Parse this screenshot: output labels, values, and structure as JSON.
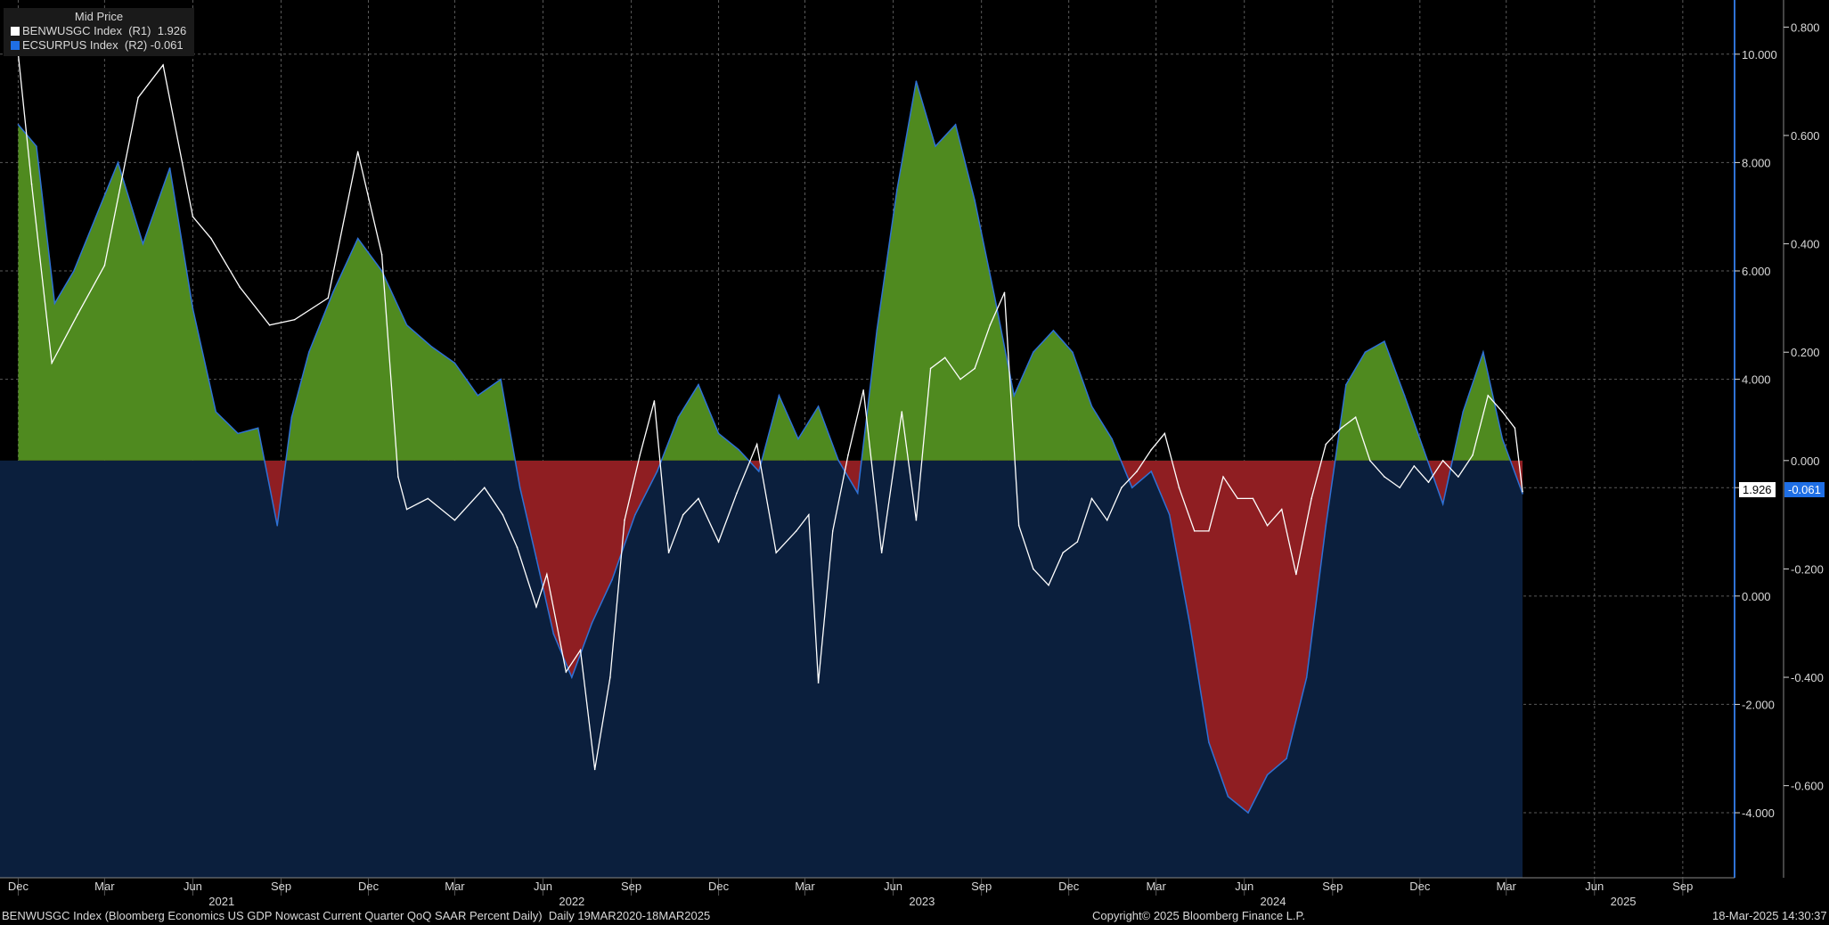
{
  "legend": {
    "title": "Mid Price",
    "series": [
      {
        "name": "BENWUSGC Index  (R1)",
        "last": "1.926",
        "color": "#ffffff"
      },
      {
        "name": "ECSURPUS Index  (R2)",
        "last": "-0.061",
        "color": "#1f6fe5"
      }
    ]
  },
  "footer": {
    "description": "BENWUSGC Index (Bloomberg Economics US GDP Nowcast Current Quarter QoQ SAAR Percent Daily)  Daily 19MAR2020-18MAR2025",
    "copyright": "Copyright© 2025 Bloomberg Finance L.P.",
    "timestamp": "18-Mar-2025 14:30:37"
  },
  "colors": {
    "background": "#000000",
    "grid": "#5a5a5a",
    "negative_fill_r2": "#0b1f3d",
    "positive_area": "#4f8a1f",
    "negative_area": "#8f1e22",
    "r2_line": "#2f72d6",
    "r1_line": "#ffffff"
  },
  "chart_data": {
    "type": "area",
    "x_axis": {
      "months": [
        "Dec",
        "Mar",
        "Jun",
        "Sep",
        "Dec",
        "Mar",
        "Jun",
        "Sep",
        "Dec",
        "Mar",
        "Jun",
        "Sep",
        "Dec",
        "Mar",
        "Jun",
        "Sep",
        "Dec",
        "Mar",
        "Jun",
        "Sep"
      ],
      "years": [
        "2021",
        "2022",
        "2023",
        "2024",
        "2025"
      ],
      "range": [
        "2020-12",
        "2025-09"
      ]
    },
    "r1_axis": {
      "ticks": [
        "10.000",
        "8.000",
        "6.000",
        "4.000",
        "2.000",
        "0.000",
        "-2.000",
        "-4.000"
      ],
      "ylim": [
        -5.2,
        11
      ]
    },
    "r2_axis": {
      "ticks": [
        "0.800",
        "0.600",
        "0.400",
        "0.200",
        "0.000",
        "-0.200",
        "-0.400",
        "-0.600"
      ],
      "ylim": [
        -0.77,
        0.85
      ]
    },
    "last_value_tags": {
      "r1": "1.926",
      "r2": "-0.061"
    },
    "series": [
      {
        "name": "ECSURPUS Index",
        "axis": "R2",
        "x": [
          "2020-12-01",
          "2020-12-20",
          "2021-01-08",
          "2021-01-28",
          "2021-02-20",
          "2021-03-15",
          "2021-04-10",
          "2021-05-08",
          "2021-06-01",
          "2021-06-25",
          "2021-07-18",
          "2021-08-08",
          "2021-08-28",
          "2021-09-12",
          "2021-09-30",
          "2021-10-25",
          "2021-11-20",
          "2021-12-15",
          "2022-01-10",
          "2022-02-05",
          "2022-03-01",
          "2022-03-25",
          "2022-04-18",
          "2022-05-08",
          "2022-05-25",
          "2022-06-12",
          "2022-07-01",
          "2022-07-22",
          "2022-08-12",
          "2022-09-05",
          "2022-09-28",
          "2022-10-20",
          "2022-11-10",
          "2022-12-01",
          "2022-12-22",
          "2023-01-12",
          "2023-02-02",
          "2023-02-22",
          "2023-03-15",
          "2023-04-05",
          "2023-04-25",
          "2023-05-15",
          "2023-06-05",
          "2023-06-25",
          "2023-07-15",
          "2023-08-05",
          "2023-08-25",
          "2023-09-15",
          "2023-10-05",
          "2023-10-25",
          "2023-11-15",
          "2023-12-05",
          "2023-12-25",
          "2024-01-15",
          "2024-02-05",
          "2024-02-25",
          "2024-03-15",
          "2024-04-05",
          "2024-04-25",
          "2024-05-15",
          "2024-06-05",
          "2024-06-25",
          "2024-07-15",
          "2024-08-05",
          "2024-08-25",
          "2024-09-15",
          "2024-10-05",
          "2024-10-25",
          "2024-11-15",
          "2024-12-05",
          "2024-12-25",
          "2025-01-15",
          "2025-02-05",
          "2025-02-25",
          "2025-03-18"
        ],
        "values": [
          0.62,
          0.58,
          0.29,
          0.35,
          0.45,
          0.55,
          0.4,
          0.54,
          0.28,
          0.09,
          0.05,
          0.06,
          -0.12,
          0.08,
          0.2,
          0.31,
          0.41,
          0.35,
          0.25,
          0.21,
          0.18,
          0.12,
          0.15,
          -0.05,
          -0.18,
          -0.32,
          -0.4,
          -0.3,
          -0.22,
          -0.1,
          -0.02,
          0.08,
          0.14,
          0.05,
          0.02,
          -0.02,
          0.12,
          0.04,
          0.1,
          0.0,
          -0.06,
          0.24,
          0.5,
          0.7,
          0.58,
          0.62,
          0.48,
          0.3,
          0.12,
          0.2,
          0.24,
          0.2,
          0.1,
          0.04,
          -0.05,
          -0.02,
          -0.1,
          -0.3,
          -0.52,
          -0.62,
          -0.65,
          -0.58,
          -0.55,
          -0.4,
          -0.12,
          0.14,
          0.2,
          0.22,
          0.12,
          0.02,
          -0.08,
          0.09,
          0.2,
          0.04,
          -0.061
        ]
      },
      {
        "name": "BENWUSGC Index",
        "axis": "R1",
        "x": [
          "2020-12-01",
          "2020-12-15",
          "2021-01-05",
          "2021-02-01",
          "2021-03-01",
          "2021-04-05",
          "2021-05-01",
          "2021-06-01",
          "2021-06-20",
          "2021-07-20",
          "2021-08-20",
          "2021-09-15",
          "2021-10-20",
          "2021-11-20",
          "2021-12-15",
          "2022-01-01",
          "2022-01-10",
          "2022-02-01",
          "2022-03-01",
          "2022-04-01",
          "2022-04-20",
          "2022-05-05",
          "2022-05-25",
          "2022-06-05",
          "2022-06-25",
          "2022-07-10",
          "2022-07-25",
          "2022-08-10",
          "2022-08-25",
          "2022-09-10",
          "2022-09-25",
          "2022-10-10",
          "2022-10-25",
          "2022-11-10",
          "2022-12-01",
          "2022-12-20",
          "2023-01-10",
          "2023-01-30",
          "2023-02-20",
          "2023-03-05",
          "2023-03-15",
          "2023-03-30",
          "2023-04-15",
          "2023-05-01",
          "2023-05-20",
          "2023-06-10",
          "2023-06-25",
          "2023-07-10",
          "2023-07-25",
          "2023-08-10",
          "2023-08-25",
          "2023-09-10",
          "2023-09-25",
          "2023-10-10",
          "2023-10-25",
          "2023-11-10",
          "2023-11-25",
          "2023-12-10",
          "2023-12-25",
          "2024-01-10",
          "2024-01-25",
          "2024-02-10",
          "2024-02-25",
          "2024-03-10",
          "2024-03-25",
          "2024-04-10",
          "2024-04-25",
          "2024-05-10",
          "2024-05-25",
          "2024-06-10",
          "2024-06-25",
          "2024-07-10",
          "2024-07-25",
          "2024-08-10",
          "2024-08-25",
          "2024-09-10",
          "2024-09-25",
          "2024-10-10",
          "2024-10-25",
          "2024-11-10",
          "2024-11-25",
          "2024-12-10",
          "2024-12-25",
          "2025-01-10",
          "2025-01-25",
          "2025-02-10",
          "2025-02-25",
          "2025-03-10",
          "2025-03-18"
        ],
        "values": [
          10.0,
          7.6,
          4.3,
          5.2,
          6.1,
          9.2,
          9.8,
          7.0,
          6.6,
          5.7,
          5.0,
          5.1,
          5.5,
          8.2,
          6.3,
          2.2,
          1.6,
          1.8,
          1.4,
          2.0,
          1.5,
          0.9,
          -0.2,
          0.4,
          -1.4,
          -1.0,
          -3.2,
          -1.5,
          1.4,
          2.6,
          3.6,
          0.8,
          1.5,
          1.8,
          1.0,
          1.9,
          2.8,
          0.8,
          1.2,
          1.5,
          -1.6,
          1.2,
          2.6,
          3.8,
          0.8,
          3.4,
          1.4,
          4.2,
          4.4,
          4.0,
          4.2,
          5.0,
          5.6,
          1.3,
          0.5,
          0.2,
          0.8,
          1.0,
          1.8,
          1.4,
          2.0,
          2.3,
          2.7,
          3.0,
          2.0,
          1.2,
          1.2,
          2.2,
          1.8,
          1.8,
          1.3,
          1.6,
          0.4,
          1.8,
          2.8,
          3.1,
          3.3,
          2.5,
          2.2,
          2.0,
          2.4,
          2.1,
          2.5,
          2.2,
          2.6,
          3.7,
          3.4,
          3.1,
          1.926
        ]
      }
    ]
  }
}
